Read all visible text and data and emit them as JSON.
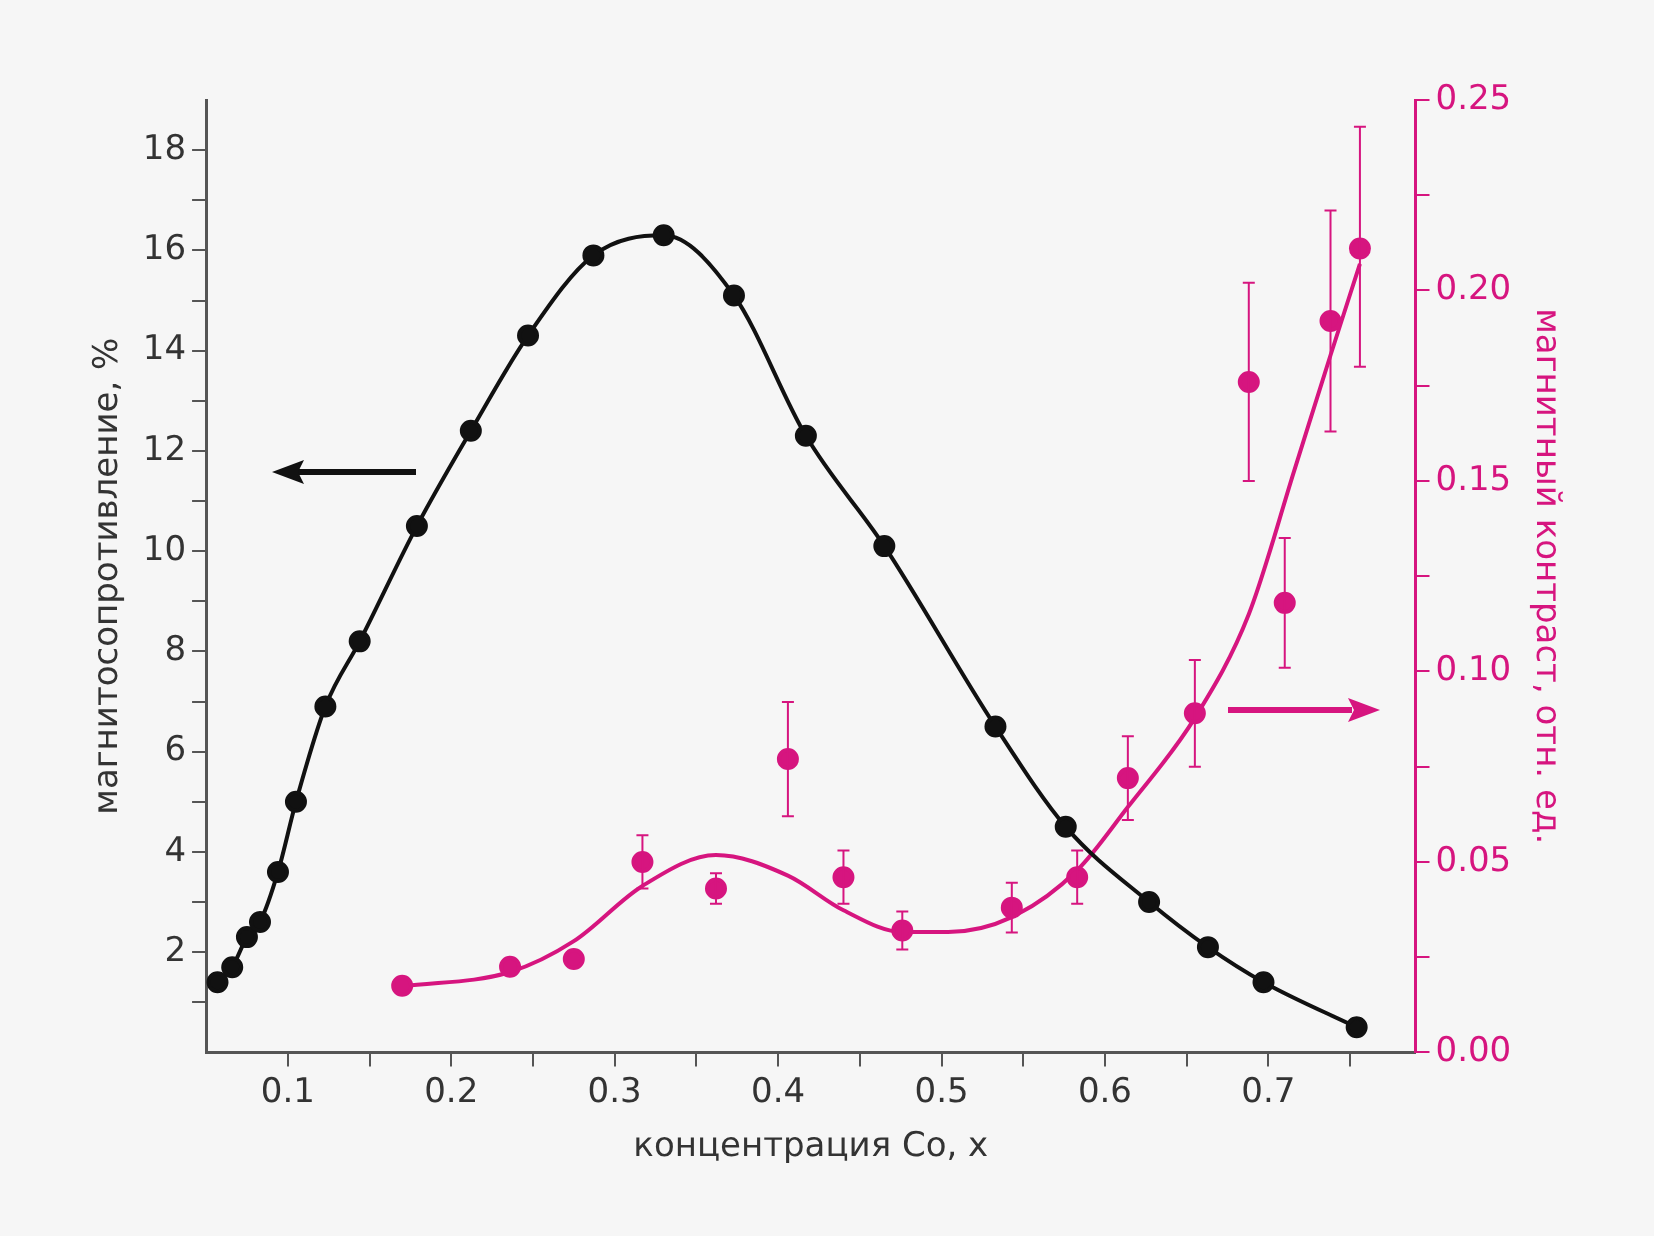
{
  "chart_data": {
    "type": "scatter",
    "xlabel": "концентрация Co, x",
    "ylabel": "магнитосопротивление, %",
    "y2label": "магнитный контраст, отн. ед.",
    "xlim": [
      0.05,
      0.79
    ],
    "xticks": [
      0.1,
      {
        "value": 0.15,
        "label": null
      },
      0.2,
      {
        "value": 0.25,
        "label": null
      },
      0.3,
      {
        "value": 0.35,
        "label": null
      },
      0.4,
      {
        "value": 0.45,
        "label": null
      },
      0.5,
      {
        "value": 0.55,
        "label": null
      },
      0.6,
      {
        "value": 0.65,
        "label": null
      },
      0.7,
      {
        "value": 0.75,
        "label": null
      }
    ],
    "ylim": [
      0,
      19
    ],
    "yticks": [
      {
        "value": 1,
        "label": null
      },
      2,
      {
        "value": 3,
        "label": null
      },
      4,
      {
        "value": 5,
        "label": null
      },
      6,
      {
        "value": 7,
        "label": null
      },
      8,
      {
        "value": 9,
        "label": null
      },
      10,
      {
        "value": 11,
        "label": null
      },
      12,
      {
        "value": 13,
        "label": null
      },
      14,
      {
        "value": 15,
        "label": null
      },
      16,
      {
        "value": 17,
        "label": null
      },
      18
    ],
    "y2lim": [
      0,
      0.25
    ],
    "y2ticks": [
      {
        "value": 0,
        "label": "0.00"
      },
      {
        "value": 0.025,
        "label": null
      },
      0.05,
      {
        "value": 0.075,
        "label": null
      },
      {
        "value": 0.1,
        "label": "0.10"
      },
      {
        "value": 0.125,
        "label": null
      },
      0.15,
      {
        "value": 0.175,
        "label": null
      },
      {
        "value": 0.2,
        "label": "0.20"
      },
      {
        "value": 0.225,
        "label": null
      },
      0.25
    ],
    "grid": false,
    "series": [
      {
        "type": "line",
        "marker": "circle",
        "color": "#111111",
        "x": [
          0.057,
          0.066,
          0.075,
          0.083,
          0.094,
          0.105,
          0.123,
          0.144,
          0.179,
          0.212,
          0.247,
          0.287,
          0.33,
          0.373,
          0.417,
          0.465,
          0.533,
          0.576,
          0.627,
          0.663,
          0.697,
          0.754
        ],
        "values": [
          1.4,
          1.7,
          2.3,
          2.6,
          3.6,
          5.0,
          6.9,
          8.2,
          10.5,
          12.4,
          14.3,
          15.9,
          16.3,
          15.1,
          12.3,
          10.1,
          6.5,
          4.5,
          3.0,
          2.1,
          1.4,
          0.5
        ]
      },
      {
        "type": "scatter",
        "marker": "circle",
        "axis": "y2",
        "color": "#d6157f",
        "x": [
          0.17,
          0.236,
          0.275,
          0.317,
          0.362,
          0.406,
          0.44,
          0.476,
          0.543,
          0.583,
          0.614,
          0.655,
          0.688,
          0.71,
          0.738,
          0.756
        ],
        "values": [
          0.0175,
          0.0225,
          0.0245,
          0.05,
          0.043,
          0.077,
          0.046,
          0.032,
          0.038,
          0.046,
          0.072,
          0.089,
          0.176,
          0.118,
          0.192,
          0.211
        ],
        "errors": [
          null,
          null,
          null,
          0.007,
          0.004,
          0.015,
          0.007,
          0.005,
          0.0065,
          0.007,
          0.011,
          0.014,
          0.026,
          0.017,
          0.029,
          [
            0.18,
            0.243
          ]
        ]
      },
      {
        "type": "line",
        "marker": "none",
        "axis": "y2",
        "color": "#d6157f",
        "x": [
          0.17,
          0.236,
          0.275,
          0.317,
          0.362,
          0.406,
          0.44,
          0.476,
          0.504,
          0.543,
          0.583,
          0.614,
          0.655,
          0.688,
          0.716,
          0.738,
          0.756
        ],
        "values": [
          0.0173,
          0.0211,
          0.0292,
          0.0437,
          0.0518,
          0.0464,
          0.0373,
          0.0316,
          0.0316,
          0.0355,
          0.0478,
          0.0644,
          0.0878,
          0.115,
          0.153,
          0.183,
          0.207
        ]
      }
    ]
  }
}
